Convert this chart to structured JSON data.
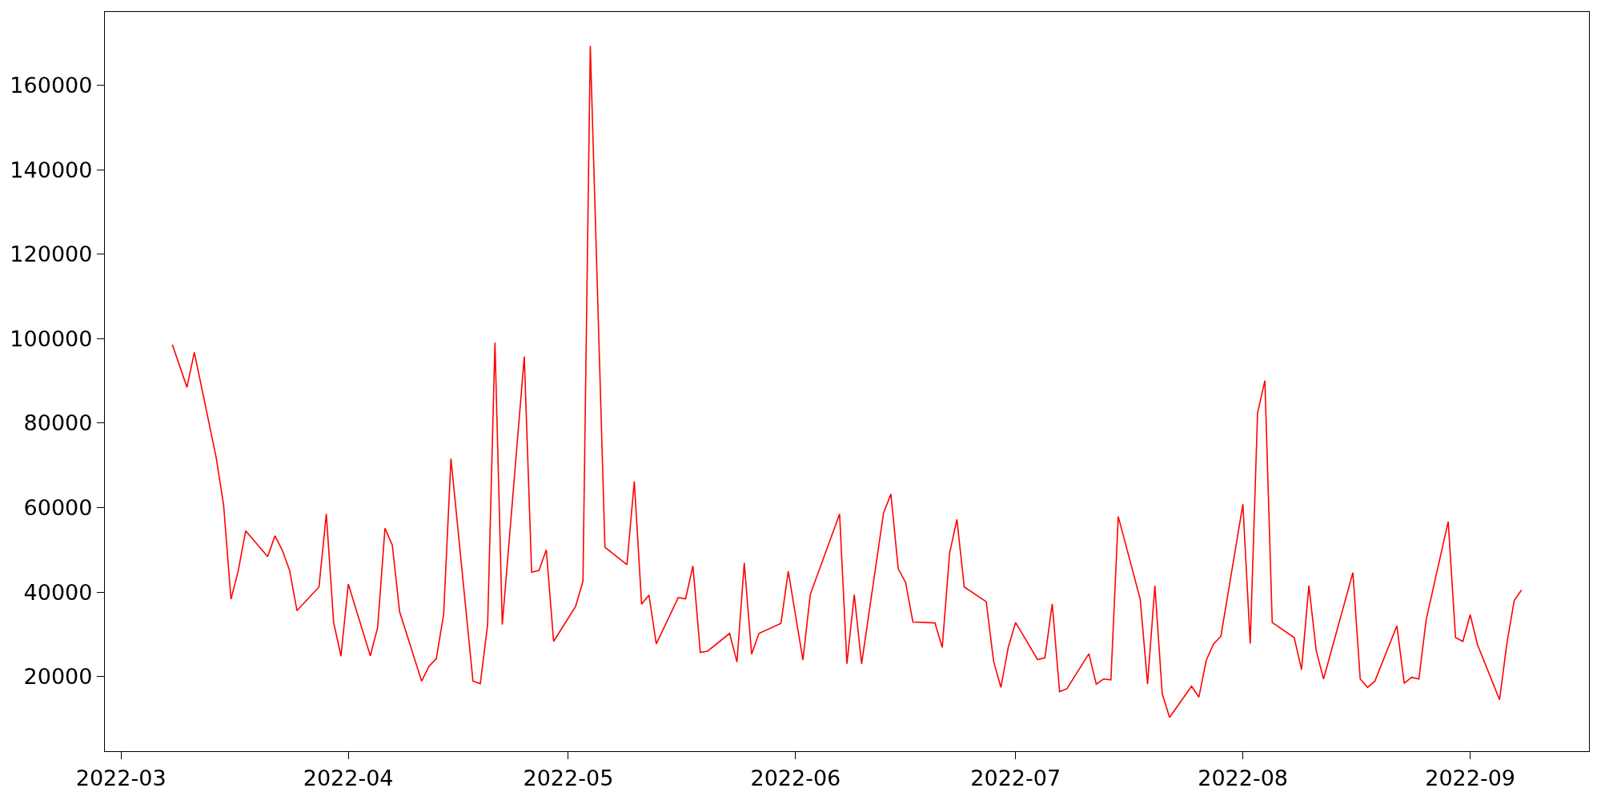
{
  "chart_data": {
    "type": "line",
    "x": [
      "2022-03-08",
      "2022-03-10",
      "2022-03-11",
      "2022-03-14",
      "2022-03-15",
      "2022-03-16",
      "2022-03-17",
      "2022-03-18",
      "2022-03-21",
      "2022-03-22",
      "2022-03-23",
      "2022-03-24",
      "2022-03-25",
      "2022-03-28",
      "2022-03-29",
      "2022-03-30",
      "2022-03-31",
      "2022-04-01",
      "2022-04-04",
      "2022-04-05",
      "2022-04-06",
      "2022-04-07",
      "2022-04-08",
      "2022-04-11",
      "2022-04-12",
      "2022-04-13",
      "2022-04-14",
      "2022-04-15",
      "2022-04-18",
      "2022-04-19",
      "2022-04-20",
      "2022-04-21",
      "2022-04-22",
      "2022-04-25",
      "2022-04-26",
      "2022-04-27",
      "2022-04-28",
      "2022-04-29",
      "2022-05-02",
      "2022-05-03",
      "2022-05-04",
      "2022-05-06",
      "2022-05-09",
      "2022-05-10",
      "2022-05-11",
      "2022-05-12",
      "2022-05-13",
      "2022-05-16",
      "2022-05-17",
      "2022-05-18",
      "2022-05-19",
      "2022-05-20",
      "2022-05-23",
      "2022-05-24",
      "2022-05-25",
      "2022-05-26",
      "2022-05-27",
      "2022-05-30",
      "2022-05-31",
      "2022-06-02",
      "2022-06-03",
      "2022-06-07",
      "2022-06-08",
      "2022-06-09",
      "2022-06-10",
      "2022-06-13",
      "2022-06-14",
      "2022-06-15",
      "2022-06-16",
      "2022-06-17",
      "2022-06-20",
      "2022-06-21",
      "2022-06-22",
      "2022-06-23",
      "2022-06-24",
      "2022-06-27",
      "2022-06-28",
      "2022-06-29",
      "2022-06-30",
      "2022-07-01",
      "2022-07-04",
      "2022-07-05",
      "2022-07-06",
      "2022-07-07",
      "2022-07-08",
      "2022-07-11",
      "2022-07-12",
      "2022-07-13",
      "2022-07-14",
      "2022-07-15",
      "2022-07-18",
      "2022-07-19",
      "2022-07-20",
      "2022-07-21",
      "2022-07-22",
      "2022-07-25",
      "2022-07-26",
      "2022-07-27",
      "2022-07-28",
      "2022-07-29",
      "2022-08-01",
      "2022-08-02",
      "2022-08-03",
      "2022-08-04",
      "2022-08-05",
      "2022-08-08",
      "2022-08-09",
      "2022-08-10",
      "2022-08-11",
      "2022-08-12",
      "2022-08-16",
      "2022-08-17",
      "2022-08-18",
      "2022-08-19",
      "2022-08-22",
      "2022-08-23",
      "2022-08-24",
      "2022-08-25",
      "2022-08-26",
      "2022-08-29",
      "2022-08-30",
      "2022-08-31",
      "2022-09-01",
      "2022-09-02",
      "2022-09-05",
      "2022-09-06",
      "2022-09-07",
      "2022-09-08"
    ],
    "series": [
      {
        "color": "#ff0000",
        "values": [
          98600,
          88500,
          96800,
          71700,
          60500,
          38300,
          45100,
          54500,
          48400,
          53300,
          49900,
          45100,
          35600,
          41200,
          58500,
          32800,
          24800,
          41900,
          24900,
          31600,
          55100,
          51100,
          35300,
          18900,
          22400,
          24200,
          34700,
          71600,
          18900,
          18300,
          32300,
          99100,
          32300,
          95800,
          44700,
          45100,
          50000,
          28300,
          36600,
          42600,
          169400,
          50600,
          46500,
          66200,
          37100,
          39300,
          27700,
          38700,
          38400,
          46200,
          25700,
          26000,
          30200,
          23400,
          46900,
          25300,
          30200,
          32600,
          44900,
          23900,
          39400,
          58500,
          23000,
          39400,
          23000,
          58800,
          63200,
          45500,
          42300,
          32900,
          32700,
          26900,
          49200,
          57200,
          41200,
          37700,
          23600,
          17400,
          26900,
          32800,
          24000,
          24400,
          37200,
          16400,
          17100,
          25400,
          18200,
          19400,
          19200,
          57900,
          38300,
          18200,
          41500,
          15900,
          10300,
          17700,
          15100,
          23800,
          27700,
          29500,
          60800,
          27800,
          82400,
          90100,
          32800,
          29200,
          21600,
          41500,
          26100,
          19400,
          44600,
          19400,
          17400,
          18900,
          32000,
          18400,
          19800,
          19400,
          33500,
          56700,
          29200,
          28300,
          34600,
          27500,
          14500,
          27800,
          38000,
          40500
        ]
      }
    ],
    "xlim": [
      "2022-02-26T19:12",
      "2022-09-17T04:48"
    ],
    "xticks": [
      "2022-03",
      "2022-04",
      "2022-05",
      "2022-06",
      "2022-07",
      "2022-08",
      "2022-09"
    ],
    "ylim": [
      2300,
      177400
    ],
    "yticks": [
      20000,
      40000,
      60000,
      80000,
      100000,
      120000,
      140000,
      160000
    ],
    "marker": "none",
    "line_style": "solid"
  }
}
